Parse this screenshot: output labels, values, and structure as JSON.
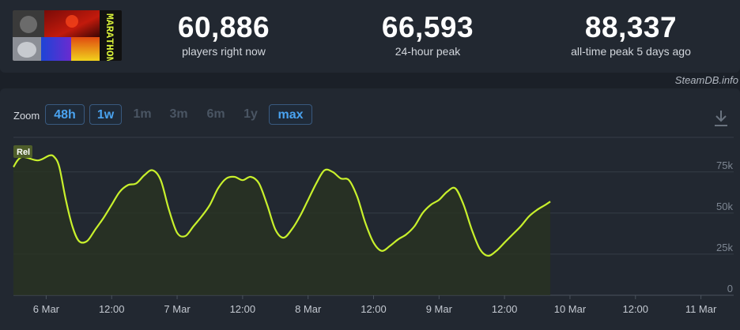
{
  "game": {
    "thumbnail_icon": "game-cover-art",
    "cover_text": "MARATHON"
  },
  "stats": [
    {
      "value": "60,886",
      "label": "players right now"
    },
    {
      "value": "66,593",
      "label": "24-hour peak"
    },
    {
      "value": "88,337",
      "label": "all-time peak 5 days ago"
    }
  ],
  "source_label": "SteamDB.info",
  "zoom": {
    "label": "Zoom",
    "options": [
      {
        "label": "48h",
        "active": true
      },
      {
        "label": "1w",
        "active": true
      },
      {
        "label": "1m",
        "active": false
      },
      {
        "label": "3m",
        "active": false
      },
      {
        "label": "6m",
        "active": false
      },
      {
        "label": "1y",
        "active": false
      },
      {
        "label": "max",
        "active": true
      }
    ],
    "download_icon": "download-icon"
  },
  "colors": {
    "line": "#c8f02c",
    "accent": "#4aa3f0"
  },
  "chart_data": {
    "type": "line",
    "series": [
      {
        "name": "",
        "points": [
          [
            0.0,
            78
          ],
          [
            0.25,
            84
          ],
          [
            0.75,
            82
          ],
          [
            1.1,
            85
          ],
          [
            1.25,
            84
          ],
          [
            1.4,
            78
          ],
          [
            1.6,
            58
          ],
          [
            1.8,
            42
          ],
          [
            2.0,
            33
          ],
          [
            2.25,
            33
          ],
          [
            2.5,
            40
          ],
          [
            2.75,
            47
          ],
          [
            3.0,
            55
          ],
          [
            3.25,
            63
          ],
          [
            3.5,
            67
          ],
          [
            3.75,
            68
          ],
          [
            4.0,
            73
          ],
          [
            4.25,
            76
          ],
          [
            4.5,
            70
          ],
          [
            4.75,
            52
          ],
          [
            5.0,
            38
          ],
          [
            5.25,
            36
          ],
          [
            5.5,
            42
          ],
          [
            5.75,
            48
          ],
          [
            6.0,
            55
          ],
          [
            6.25,
            65
          ],
          [
            6.5,
            71
          ],
          [
            6.75,
            72
          ],
          [
            7.0,
            70
          ],
          [
            7.25,
            72
          ],
          [
            7.5,
            68
          ],
          [
            7.75,
            55
          ],
          [
            8.0,
            40
          ],
          [
            8.25,
            35
          ],
          [
            8.5,
            40
          ],
          [
            8.75,
            48
          ],
          [
            9.0,
            58
          ],
          [
            9.25,
            68
          ],
          [
            9.5,
            76
          ],
          [
            9.75,
            75
          ],
          [
            10.0,
            71
          ],
          [
            10.25,
            70
          ],
          [
            10.5,
            60
          ],
          [
            10.75,
            44
          ],
          [
            11.0,
            32
          ],
          [
            11.25,
            27
          ],
          [
            11.5,
            30
          ],
          [
            11.75,
            34
          ],
          [
            12.0,
            37
          ],
          [
            12.25,
            42
          ],
          [
            12.5,
            50
          ],
          [
            12.75,
            55
          ],
          [
            13.0,
            58
          ],
          [
            13.25,
            63
          ],
          [
            13.5,
            65
          ],
          [
            13.75,
            55
          ],
          [
            14.0,
            40
          ],
          [
            14.25,
            28
          ],
          [
            14.5,
            24
          ],
          [
            14.75,
            27
          ],
          [
            15.0,
            32
          ],
          [
            15.25,
            37
          ],
          [
            15.5,
            42
          ],
          [
            15.75,
            48
          ],
          [
            16.0,
            52
          ],
          [
            16.25,
            55
          ],
          [
            16.4,
            57
          ]
        ]
      }
    ],
    "x_tick_labels": [
      "6 Mar",
      "12:00",
      "7 Mar",
      "12:00",
      "8 Mar",
      "12:00",
      "9 Mar",
      "12:00",
      "10 Mar",
      "12:00",
      "11 Mar"
    ],
    "x_tick_positions": [
      1,
      3,
      5,
      7,
      9,
      11,
      13,
      15,
      17,
      19,
      21
    ],
    "y_tick_labels": [
      "0",
      "25k",
      "50k",
      "75k"
    ],
    "y_ticks": [
      0,
      25,
      50,
      75
    ],
    "ylim": [
      0,
      96
    ],
    "badge": "Rel",
    "grid": true
  }
}
